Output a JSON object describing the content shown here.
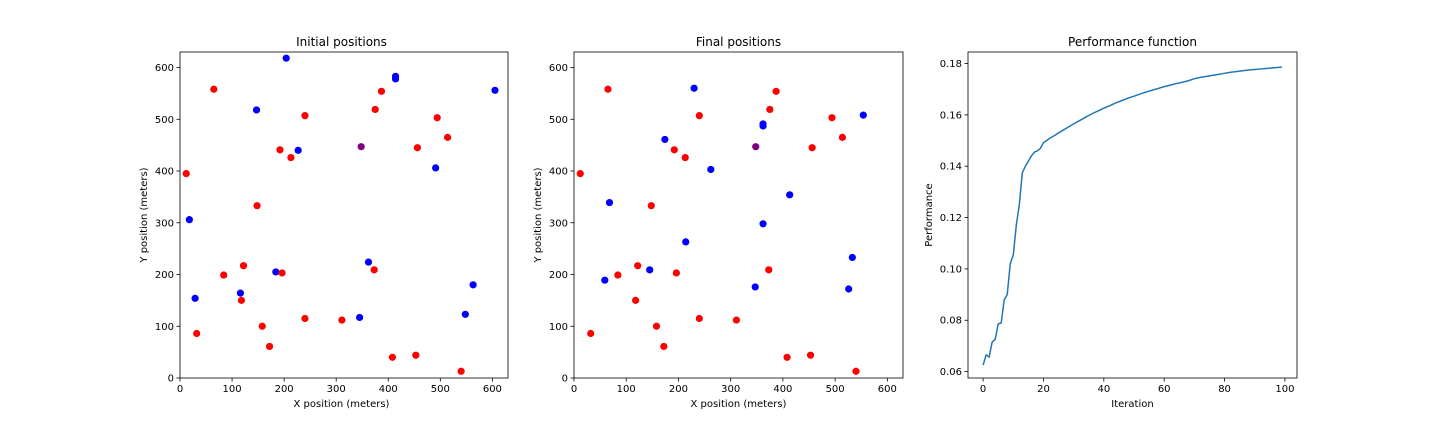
{
  "colors": {
    "blue": "#0000ff",
    "red": "#ff0000",
    "purple": "#800080",
    "line": "#1f77b4"
  },
  "chart_data": [
    {
      "type": "scatter",
      "title": "Initial positions",
      "xlabel": "X position (meters)",
      "ylabel": "Y position (meters)",
      "xlim": [
        0,
        630
      ],
      "ylim": [
        0,
        630
      ],
      "xticks": [
        0,
        100,
        200,
        300,
        400,
        500,
        600
      ],
      "yticks": [
        0,
        100,
        200,
        300,
        400,
        500,
        600
      ],
      "series": [
        {
          "color": "blue",
          "points": [
            [
              204,
              618
            ],
            [
              414,
              583
            ],
            [
              414,
              578
            ],
            [
              605,
              556
            ],
            [
              147,
              518
            ],
            [
              227,
              440
            ],
            [
              491,
              406
            ],
            [
              18,
              306
            ],
            [
              362,
              224
            ],
            [
              184,
              205
            ],
            [
              563,
              180
            ],
            [
              29,
              154
            ],
            [
              116,
              164
            ],
            [
              548,
              123
            ],
            [
              345,
              117
            ]
          ]
        },
        {
          "color": "red",
          "points": [
            [
              65,
              558
            ],
            [
              387,
              554
            ],
            [
              375,
              519
            ],
            [
              240,
              507
            ],
            [
              494,
              503
            ],
            [
              514,
              465
            ],
            [
              192,
              441
            ],
            [
              456,
              445
            ],
            [
              213,
              426
            ],
            [
              12,
              395
            ],
            [
              148,
              333
            ],
            [
              122,
              217
            ],
            [
              84,
              199
            ],
            [
              196,
              203
            ],
            [
              373,
              209
            ],
            [
              118,
              150
            ],
            [
              32,
              86
            ],
            [
              158,
              100
            ],
            [
              240,
              115
            ],
            [
              311,
              112
            ],
            [
              172,
              61
            ],
            [
              408,
              40
            ],
            [
              453,
              44
            ],
            [
              540,
              13
            ]
          ]
        },
        {
          "color": "purple",
          "points": [
            [
              348,
              447
            ]
          ]
        }
      ]
    },
    {
      "type": "scatter",
      "title": "Final positions",
      "xlabel": "X position (meters)",
      "ylabel": "Y position (meters)",
      "xlim": [
        0,
        630
      ],
      "ylim": [
        0,
        630
      ],
      "xticks": [
        0,
        100,
        200,
        300,
        400,
        500,
        600
      ],
      "yticks": [
        0,
        100,
        200,
        300,
        400,
        500,
        600
      ],
      "series": [
        {
          "color": "blue",
          "points": [
            [
              230,
              560
            ],
            [
              362,
              491
            ],
            [
              362,
              487
            ],
            [
              554,
              508
            ],
            [
              174,
              461
            ],
            [
              262,
              403
            ],
            [
              413,
              354
            ],
            [
              68,
              339
            ],
            [
              362,
              298
            ],
            [
              533,
              233
            ],
            [
              214,
              263
            ],
            [
              59,
              189
            ],
            [
              145,
              209
            ],
            [
              347,
              176
            ],
            [
              526,
              172
            ]
          ]
        },
        {
          "color": "red",
          "points": [
            [
              65,
              558
            ],
            [
              387,
              554
            ],
            [
              375,
              519
            ],
            [
              240,
              507
            ],
            [
              494,
              503
            ],
            [
              514,
              465
            ],
            [
              192,
              441
            ],
            [
              456,
              445
            ],
            [
              213,
              426
            ],
            [
              12,
              395
            ],
            [
              148,
              333
            ],
            [
              122,
              217
            ],
            [
              84,
              199
            ],
            [
              196,
              203
            ],
            [
              373,
              209
            ],
            [
              118,
              150
            ],
            [
              32,
              86
            ],
            [
              158,
              100
            ],
            [
              240,
              115
            ],
            [
              311,
              112
            ],
            [
              172,
              61
            ],
            [
              408,
              40
            ],
            [
              453,
              44
            ],
            [
              540,
              13
            ]
          ]
        },
        {
          "color": "purple",
          "points": [
            [
              348,
              447
            ]
          ]
        }
      ]
    },
    {
      "type": "line",
      "title": "Performance function",
      "xlabel": "Iteration",
      "ylabel": "Performance",
      "xlim": [
        -5,
        104
      ],
      "ylim": [
        0.0575,
        0.1845
      ],
      "xticks": [
        0,
        20,
        40,
        60,
        80,
        100
      ],
      "yticks": [
        0.06,
        0.08,
        0.1,
        0.12,
        0.14,
        0.16,
        0.18
      ],
      "ytick_labels": [
        "0.06",
        "0.08",
        "0.10",
        "0.12",
        "0.14",
        "0.16",
        "0.18"
      ],
      "x": [
        0,
        1,
        2,
        3,
        4,
        5,
        6,
        7,
        8,
        9,
        10,
        11,
        12,
        13,
        14,
        15,
        16,
        17,
        18,
        19,
        20,
        22,
        24,
        26,
        28,
        30,
        32,
        34,
        36,
        38,
        40,
        42,
        44,
        46,
        48,
        50,
        52,
        54,
        56,
        58,
        60,
        62,
        64,
        66,
        68,
        70,
        72,
        74,
        76,
        78,
        80,
        82,
        84,
        86,
        88,
        90,
        92,
        94,
        96,
        98,
        99
      ],
      "y": [
        0.0625,
        0.0665,
        0.0657,
        0.0715,
        0.0725,
        0.0785,
        0.079,
        0.088,
        0.09,
        0.102,
        0.1055,
        0.117,
        0.125,
        0.1375,
        0.14,
        0.142,
        0.144,
        0.1455,
        0.146,
        0.147,
        0.1492,
        0.1508,
        0.1522,
        0.1537,
        0.1551,
        0.1565,
        0.1578,
        0.1591,
        0.1604,
        0.1615,
        0.1626,
        0.1636,
        0.1647,
        0.1656,
        0.1665,
        0.1673,
        0.1681,
        0.1689,
        0.1696,
        0.1703,
        0.171,
        0.1716,
        0.1722,
        0.1727,
        0.1733,
        0.1741,
        0.1746,
        0.175,
        0.1754,
        0.1758,
        0.1762,
        0.1766,
        0.1769,
        0.1772,
        0.1775,
        0.1777,
        0.1779,
        0.1781,
        0.1783,
        0.1785,
        0.1786
      ]
    }
  ]
}
